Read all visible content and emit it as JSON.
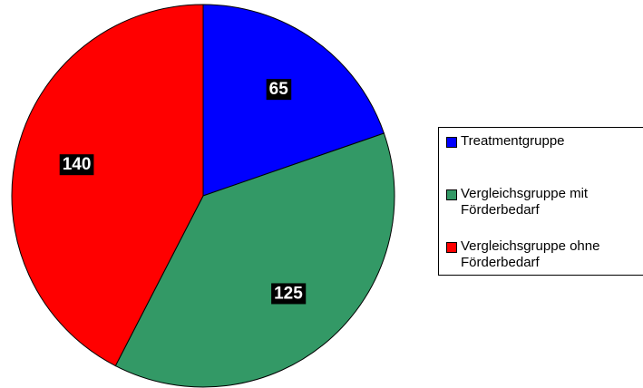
{
  "chart_data": {
    "type": "pie",
    "categories": [
      "Treatmentgruppe",
      "Vergleichsgruppe mit Förderbedarf",
      "Vergleichsgruppe ohne Förderbedarf"
    ],
    "values": [
      65,
      125,
      140
    ],
    "colors": [
      "#0000ff",
      "#339966",
      "#ff0000"
    ]
  }
}
